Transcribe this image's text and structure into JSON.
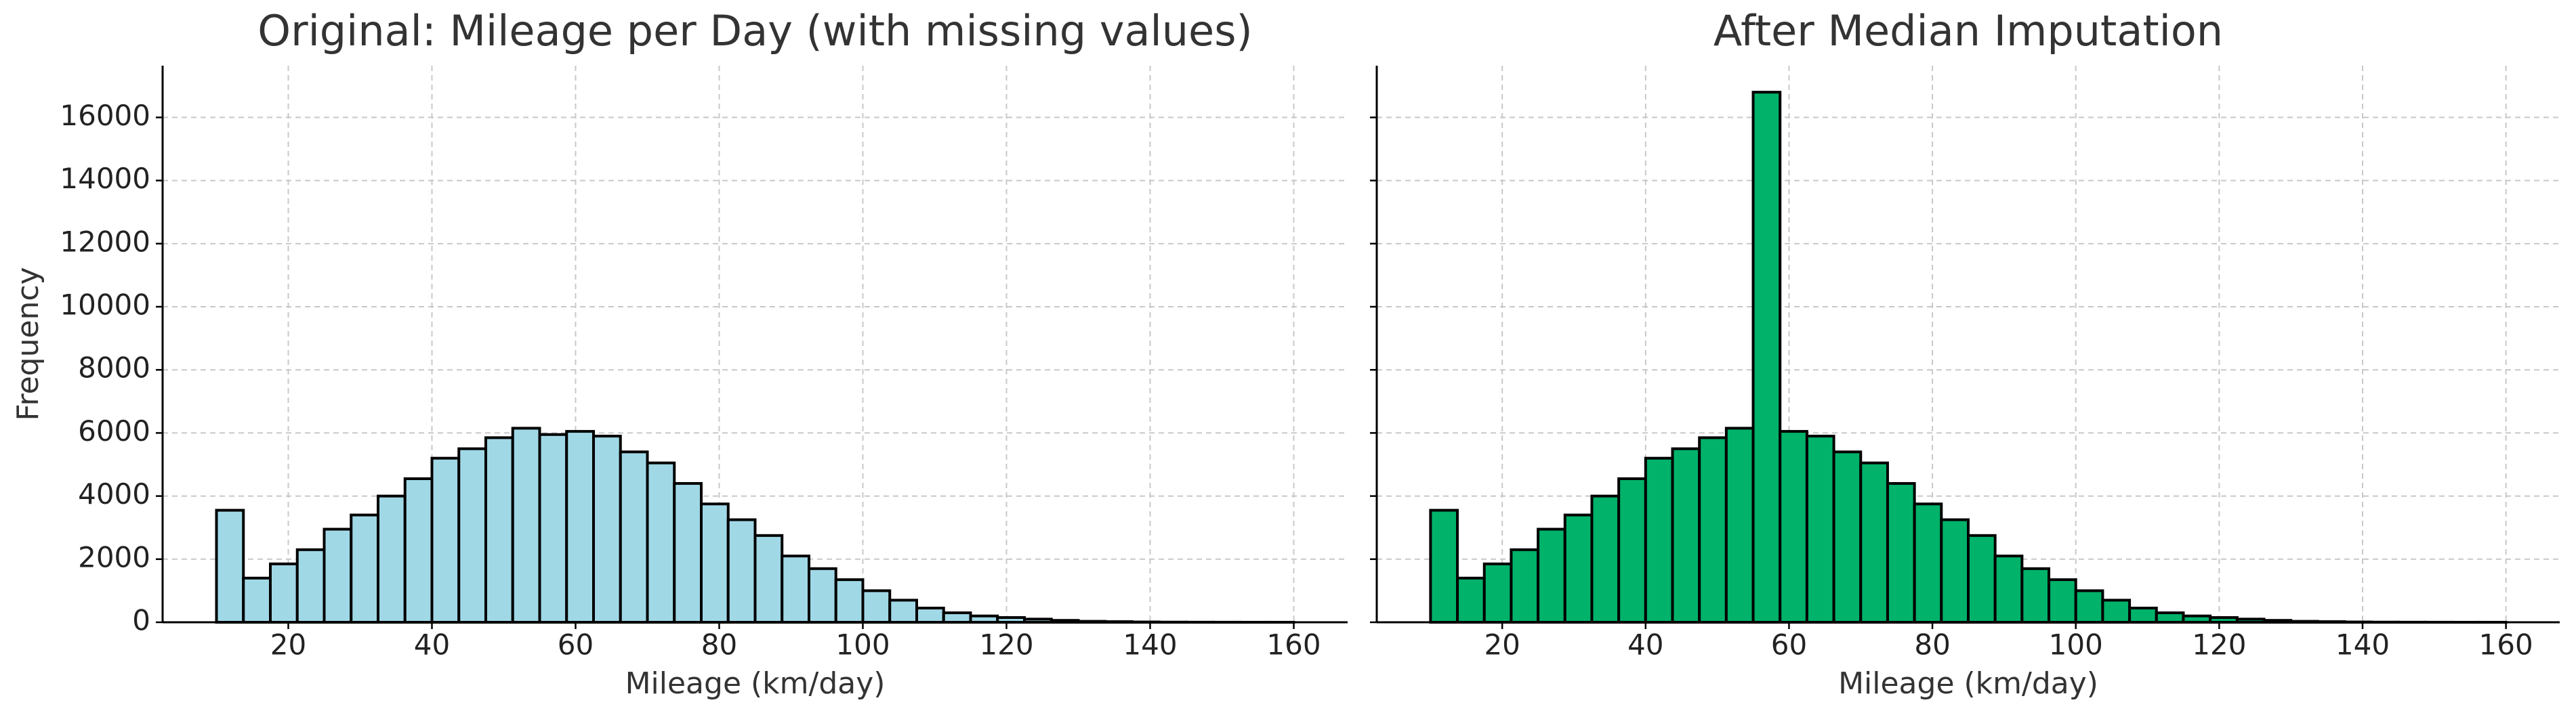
{
  "chart_data": [
    {
      "type": "histogram",
      "title": "Original: Mileage per Day (with missing values)",
      "xlabel": "Mileage (km/day)",
      "ylabel": "Frequency",
      "bins": [
        10,
        13.75,
        17.5,
        21.25,
        25,
        28.75,
        32.5,
        36.25,
        40,
        43.75,
        47.5,
        51.25,
        55,
        58.75,
        62.5,
        66.25,
        70,
        73.75,
        77.5,
        81.25,
        85,
        88.75,
        92.5,
        96.25,
        100,
        103.75,
        107.5,
        111.25,
        115,
        118.75,
        122.5,
        126.25,
        130,
        133.75,
        137.5,
        141.25,
        145,
        148.75,
        152.5,
        156.25,
        160
      ],
      "values": [
        3550,
        1400,
        1850,
        2300,
        2950,
        3400,
        4000,
        4550,
        5200,
        5500,
        5850,
        6150,
        5950,
        6050,
        5900,
        5400,
        5050,
        4400,
        3750,
        3250,
        2750,
        2100,
        1700,
        1350,
        1000,
        700,
        450,
        300,
        200,
        150,
        100,
        60,
        30,
        20,
        10,
        5,
        3,
        2,
        1,
        1
      ],
      "color": "#a0d8e6",
      "edgecolor": "#000000",
      "xlim": [
        2.5,
        167.5
      ],
      "ylim": [
        0,
        17640
      ],
      "xticks": [
        20,
        40,
        60,
        80,
        100,
        120,
        140,
        160
      ],
      "yticks": [
        0,
        2000,
        4000,
        6000,
        8000,
        10000,
        12000,
        14000,
        16000
      ],
      "grid": true,
      "show_ytick_labels": true
    },
    {
      "type": "histogram",
      "title": "After Median Imputation",
      "xlabel": "Mileage (km/day)",
      "bins": [
        10,
        13.75,
        17.5,
        21.25,
        25,
        28.75,
        32.5,
        36.25,
        40,
        43.75,
        47.5,
        51.25,
        55,
        58.75,
        62.5,
        66.25,
        70,
        73.75,
        77.5,
        81.25,
        85,
        88.75,
        92.5,
        96.25,
        100,
        103.75,
        107.5,
        111.25,
        115,
        118.75,
        122.5,
        126.25,
        130,
        133.75,
        137.5,
        141.25,
        145,
        148.75,
        152.5,
        156.25,
        160
      ],
      "values": [
        3550,
        1400,
        1850,
        2300,
        2950,
        3400,
        4000,
        4550,
        5200,
        5500,
        5850,
        6150,
        16800,
        6050,
        5900,
        5400,
        5050,
        4400,
        3750,
        3250,
        2750,
        2100,
        1700,
        1350,
        1000,
        700,
        450,
        300,
        200,
        150,
        100,
        60,
        30,
        20,
        10,
        5,
        3,
        2,
        1,
        1
      ],
      "color": "#00b26a",
      "edgecolor": "#000000",
      "xlim": [
        2.5,
        167.5
      ],
      "ylim": [
        0,
        17640
      ],
      "xticks": [
        20,
        40,
        60,
        80,
        100,
        120,
        140,
        160
      ],
      "yticks": [
        0,
        2000,
        4000,
        6000,
        8000,
        10000,
        12000,
        14000,
        16000
      ],
      "grid": true,
      "show_ytick_labels": false
    }
  ]
}
